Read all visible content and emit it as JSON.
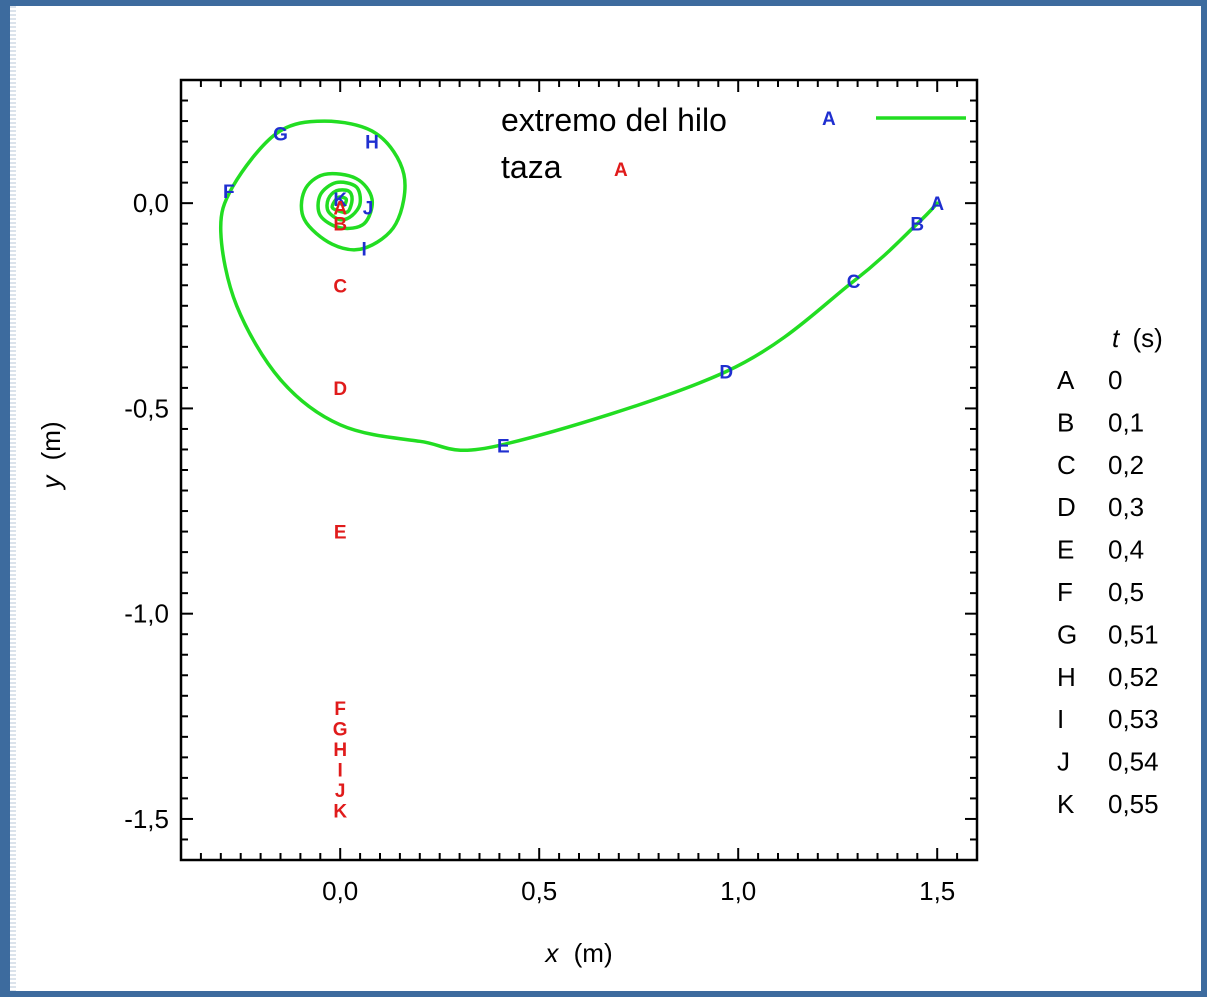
{
  "chart_data": {
    "type": "line",
    "xlabel": {
      "var": "x",
      "unit": "(m)"
    },
    "ylabel": {
      "var": "y",
      "unit": "(m)"
    },
    "xlim": [
      -0.4,
      1.6
    ],
    "ylim": [
      -1.6,
      0.3
    ],
    "x_ticks": [
      {
        "value": 0.0,
        "label": "0,0"
      },
      {
        "value": 0.5,
        "label": "0,5"
      },
      {
        "value": 1.0,
        "label": "1,0"
      },
      {
        "value": 1.5,
        "label": "1,5"
      }
    ],
    "y_ticks": [
      {
        "value": 0.0,
        "label": "0,0"
      },
      {
        "value": -0.5,
        "label": "-0,5"
      },
      {
        "value": -1.0,
        "label": "-1,0"
      },
      {
        "value": -1.5,
        "label": "-1,5"
      }
    ],
    "grid": false,
    "legend_position": "top-right",
    "series": [
      {
        "name": "extremo del hilo",
        "legend_marker": "A",
        "color": "#22dd22",
        "label_color": "#1f2fd0",
        "points": [
          [
            1.5,
            0.0
          ],
          [
            1.45,
            -0.05
          ],
          [
            1.29,
            -0.19
          ],
          [
            0.97,
            -0.41
          ],
          [
            0.4,
            -0.59
          ],
          [
            0.2,
            -0.58
          ],
          [
            0.0,
            -0.54
          ],
          [
            -0.15,
            -0.43
          ],
          [
            -0.26,
            -0.25
          ],
          [
            -0.3,
            -0.07
          ],
          [
            -0.27,
            0.04
          ],
          [
            -0.16,
            0.17
          ],
          [
            -0.04,
            0.2
          ],
          [
            0.09,
            0.17
          ],
          [
            0.16,
            0.07
          ],
          [
            0.14,
            -0.05
          ],
          [
            0.06,
            -0.11
          ],
          [
            -0.02,
            -0.1
          ],
          [
            -0.09,
            -0.04
          ],
          [
            -0.09,
            0.03
          ],
          [
            -0.04,
            0.07
          ],
          [
            0.04,
            0.06
          ],
          [
            0.08,
            0.01
          ],
          [
            0.06,
            -0.05
          ],
          [
            0.0,
            -0.06
          ],
          [
            -0.05,
            -0.03
          ],
          [
            -0.05,
            0.02
          ],
          [
            -0.01,
            0.05
          ],
          [
            0.04,
            0.04
          ],
          [
            0.05,
            0.0
          ],
          [
            0.03,
            -0.03
          ],
          [
            0.0,
            -0.04
          ],
          [
            -0.03,
            -0.02
          ],
          [
            -0.03,
            0.01
          ],
          [
            -0.01,
            0.03
          ],
          [
            0.02,
            0.03
          ],
          [
            0.03,
            0.01
          ],
          [
            0.02,
            -0.02
          ],
          [
            0.0,
            -0.02
          ],
          [
            -0.02,
            -0.01
          ],
          [
            -0.01,
            0.01
          ],
          [
            0.0,
            0.015
          ],
          [
            0.015,
            0.01
          ],
          [
            0.01,
            -0.005
          ],
          [
            0.0,
            0.0
          ]
        ],
        "markers": [
          {
            "label": "A",
            "x": 1.5,
            "y": 0.0
          },
          {
            "label": "B",
            "x": 1.45,
            "y": -0.05
          },
          {
            "label": "C",
            "x": 1.29,
            "y": -0.19
          },
          {
            "label": "D",
            "x": 0.97,
            "y": -0.41
          },
          {
            "label": "E",
            "x": 0.41,
            "y": -0.59
          },
          {
            "label": "F",
            "x": -0.28,
            "y": 0.03
          },
          {
            "label": "G",
            "x": -0.15,
            "y": 0.17
          },
          {
            "label": "H",
            "x": 0.08,
            "y": 0.15
          },
          {
            "label": "I",
            "x": 0.06,
            "y": -0.11
          },
          {
            "label": "J",
            "x": 0.07,
            "y": -0.01
          },
          {
            "label": "K",
            "x": 0.0,
            "y": 0.01
          }
        ]
      },
      {
        "name": "taza",
        "legend_marker": "A",
        "color": "#e01b1b",
        "markers": [
          {
            "label": "A",
            "x": 0.0,
            "y": -0.01
          },
          {
            "label": "B",
            "x": 0.0,
            "y": -0.05
          },
          {
            "label": "C",
            "x": 0.0,
            "y": -0.2
          },
          {
            "label": "D",
            "x": 0.0,
            "y": -0.45
          },
          {
            "label": "E",
            "x": 0.0,
            "y": -0.8
          },
          {
            "label": "F",
            "x": 0.0,
            "y": -1.23
          },
          {
            "label": "G",
            "x": 0.0,
            "y": -1.28
          },
          {
            "label": "H",
            "x": 0.0,
            "y": -1.33
          },
          {
            "label": "I",
            "x": 0.0,
            "y": -1.38
          },
          {
            "label": "J",
            "x": 0.0,
            "y": -1.43
          },
          {
            "label": "K",
            "x": 0.0,
            "y": -1.48
          }
        ]
      }
    ],
    "time_table": {
      "header": {
        "var": "t",
        "unit": "(s)"
      },
      "rows": [
        {
          "label": "A",
          "value": "0"
        },
        {
          "label": "B",
          "value": "0,1"
        },
        {
          "label": "C",
          "value": "0,2"
        },
        {
          "label": "D",
          "value": "0,3"
        },
        {
          "label": "E",
          "value": "0,4"
        },
        {
          "label": "F",
          "value": "0,5"
        },
        {
          "label": "G",
          "value": "0,51"
        },
        {
          "label": "H",
          "value": "0,52"
        },
        {
          "label": "I",
          "value": "0,53"
        },
        {
          "label": "J",
          "value": "0,54"
        },
        {
          "label": "K",
          "value": "0,55"
        }
      ]
    }
  }
}
